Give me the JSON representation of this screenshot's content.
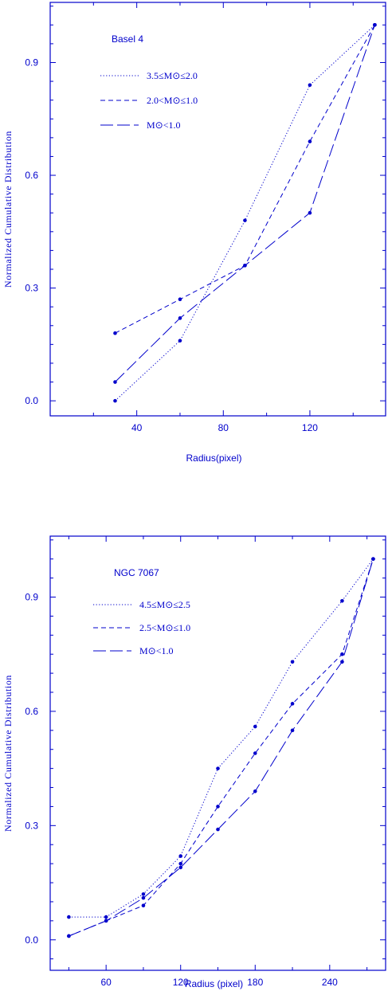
{
  "chart_data": [
    {
      "type": "line",
      "title": "Basel 4",
      "xlabel": "Radius(pixel)",
      "ylabel": "Normalized Cumulative Distribution",
      "xlim": [
        0,
        155
      ],
      "ylim": [
        -0.04,
        1.06
      ],
      "xticks": [
        40,
        80,
        120
      ],
      "yticks": [
        0.0,
        0.3,
        0.6,
        0.9
      ],
      "ytick_labels": [
        "0.0",
        "0.3",
        "0.6",
        "0.9"
      ],
      "legend_position": "top-left",
      "series": [
        {
          "name": "3.5≤M⊙≤2.0",
          "style": "dotted",
          "x": [
            30,
            60,
            90,
            120,
            150
          ],
          "values": [
            0.0,
            0.16,
            0.48,
            0.84,
            1.0
          ]
        },
        {
          "name": "2.0<M⊙≤1.0",
          "style": "dashed",
          "x": [
            30,
            60,
            90,
            120,
            150
          ],
          "values": [
            0.18,
            0.27,
            0.36,
            0.69,
            1.0
          ]
        },
        {
          "name": "M⊙<1.0",
          "style": "longdash",
          "x": [
            30,
            60,
            90,
            120,
            150
          ],
          "values": [
            0.05,
            0.22,
            0.36,
            0.5,
            1.0
          ]
        }
      ]
    },
    {
      "type": "line",
      "title": "NGC 7067",
      "xlabel": "Radius (pixel)",
      "ylabel": "Normalized Cumulative Distribution",
      "xlim": [
        15,
        285
      ],
      "ylim": [
        -0.08,
        1.06
      ],
      "xticks": [
        60,
        120,
        180,
        240
      ],
      "yticks": [
        0.0,
        0.3,
        0.6,
        0.9
      ],
      "ytick_labels": [
        "0.0",
        "0.3",
        "0.6",
        "0.9"
      ],
      "legend_position": "top-left",
      "series": [
        {
          "name": "4.5≤M⊙≤2.5",
          "style": "dotted",
          "x": [
            30,
            60,
            90,
            120,
            150,
            180,
            210,
            250,
            275
          ],
          "values": [
            0.06,
            0.06,
            0.12,
            0.22,
            0.45,
            0.56,
            0.73,
            0.89,
            1.0
          ]
        },
        {
          "name": "2.5<M⊙≤1.0",
          "style": "dashed",
          "x": [
            30,
            60,
            90,
            120,
            150,
            180,
            210,
            250,
            275
          ],
          "values": [
            0.01,
            0.05,
            0.09,
            0.2,
            0.35,
            0.49,
            0.62,
            0.75,
            1.0
          ]
        },
        {
          "name": "M⊙<1.0",
          "style": "longdash",
          "x": [
            30,
            60,
            90,
            120,
            150,
            180,
            210,
            250,
            275
          ],
          "values": [
            0.01,
            0.05,
            0.11,
            0.19,
            0.29,
            0.39,
            0.55,
            0.73,
            1.0
          ]
        }
      ]
    }
  ]
}
